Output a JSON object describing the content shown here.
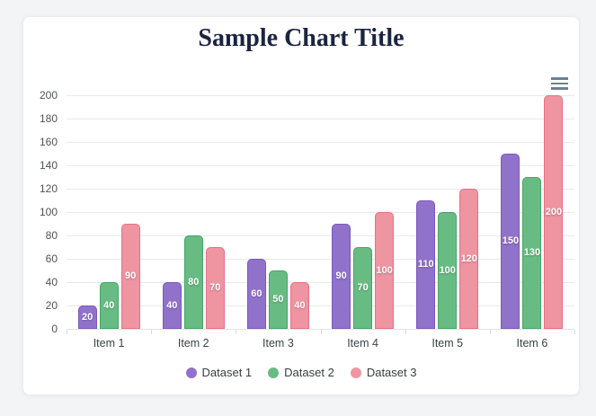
{
  "page": {
    "background": "#f3f4f5",
    "card_background": "#ffffff"
  },
  "header": {
    "title_color": "#1b2440"
  },
  "toolbar": {
    "menu_icon": "hamburger-menu",
    "menu_icon_color": "#6e8192"
  },
  "chart_data": {
    "type": "bar",
    "title": "Sample Chart Title",
    "categories": [
      "Item 1",
      "Item 2",
      "Item 3",
      "Item 4",
      "Item 5",
      "Item 6"
    ],
    "series": [
      {
        "name": "Dataset 1",
        "color": "#9172cb",
        "border": "#7a58bd",
        "values": [
          20,
          40,
          60,
          90,
          110,
          150
        ]
      },
      {
        "name": "Dataset 2",
        "color": "#68bc83",
        "border": "#42a566",
        "values": [
          40,
          80,
          50,
          70,
          100,
          130
        ]
      },
      {
        "name": "Dataset 3",
        "color": "#ef94a1",
        "border": "#e87086",
        "values": [
          90,
          70,
          40,
          100,
          120,
          200
        ]
      }
    ],
    "xlabel": "",
    "ylabel": "",
    "ylim": [
      0,
      200
    ],
    "ytick_step": 20,
    "ytick_labels": [
      "0",
      "20",
      "40",
      "60",
      "80",
      "100",
      "120",
      "140",
      "160",
      "180",
      "200"
    ],
    "grid": true,
    "data_labels": true,
    "data_label_color": "#ffffff",
    "legend_position": "bottom",
    "axis_label_color": "#4e5356",
    "grid_color": "#e9e9ea"
  }
}
